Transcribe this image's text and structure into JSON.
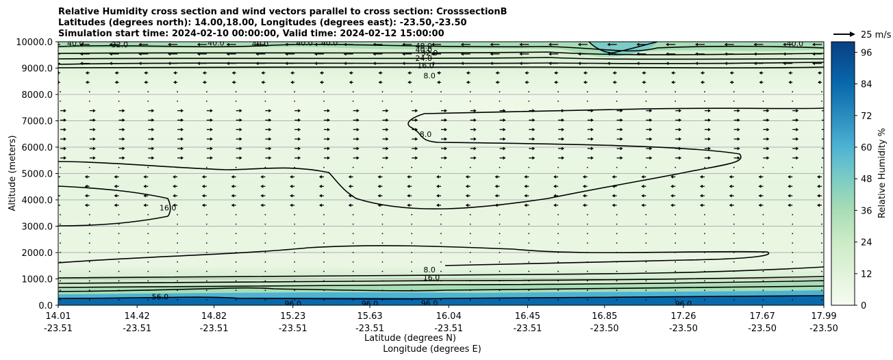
{
  "title_lines": [
    "Relative Humidity cross section and wind vectors parallel to cross section: CrosssectionB",
    "Latitudes (degrees north): 14.00,18.00, Longitudes (degrees east): -23.50,-23.50",
    "Simulation start time: 2024-02-10 00:00:00, Valid time: 2024-02-12 15:00:00"
  ],
  "quiver_key_label": "25 m/s",
  "chart_data": {
    "type": "contour",
    "xlabel": "Latitude (degrees N)",
    "xlabel2": "Longitude (degrees E)",
    "ylabel": "Altitude (meters)",
    "ylim": [
      0,
      10000
    ],
    "y_ticks": [
      0,
      1000,
      2000,
      3000,
      4000,
      5000,
      6000,
      7000,
      8000,
      9000,
      10000
    ],
    "y_tick_labels": [
      "0.0",
      "1000.0",
      "2000.0",
      "3000.0",
      "4000.0",
      "5000.0",
      "6000.0",
      "7000.0",
      "8000.0",
      "9000.0",
      "10000.0"
    ],
    "x_ticks": [
      {
        "lat": "14.01",
        "lon": "-23.51"
      },
      {
        "lat": "14.42",
        "lon": "-23.51"
      },
      {
        "lat": "14.82",
        "lon": "-23.51"
      },
      {
        "lat": "15.23",
        "lon": "-23.51"
      },
      {
        "lat": "15.63",
        "lon": "-23.51"
      },
      {
        "lat": "16.04",
        "lon": "-23.51"
      },
      {
        "lat": "16.45",
        "lon": "-23.51"
      },
      {
        "lat": "16.85",
        "lon": "-23.50"
      },
      {
        "lat": "17.26",
        "lon": "-23.50"
      },
      {
        "lat": "17.67",
        "lon": "-23.50"
      },
      {
        "lat": "17.99",
        "lon": "-23.50"
      }
    ],
    "grid": "horizontal",
    "colorbar": {
      "label": "Relative Humidity %",
      "ticks": [
        0,
        12,
        24,
        36,
        48,
        60,
        72,
        84,
        96
      ],
      "range": [
        0,
        100
      ],
      "colormap_stops": [
        "#f7fcf0",
        "#e0f3db",
        "#ccebc5",
        "#a8ddb5",
        "#7bccc4",
        "#4eb3d3",
        "#2b8cbe",
        "#0868ac",
        "#084081"
      ]
    },
    "contour_labels": [
      {
        "text": "40.0",
        "x": 14.1,
        "y": 9950
      },
      {
        "text": "32.0",
        "x": 14.33,
        "y": 9900
      },
      {
        "text": "40.0",
        "x": 14.83,
        "y": 9960
      },
      {
        "text": "40.0",
        "x": 15.06,
        "y": 9920
      },
      {
        "text": "40.0",
        "x": 15.29,
        "y": 9960
      },
      {
        "text": "40.0",
        "x": 15.42,
        "y": 9960
      },
      {
        "text": "48.0",
        "x": 15.91,
        "y": 9850
      },
      {
        "text": "40.0",
        "x": 15.91,
        "y": 9700
      },
      {
        "text": "32.0",
        "x": 15.94,
        "y": 9580
      },
      {
        "text": "24.0",
        "x": 15.91,
        "y": 9380
      },
      {
        "text": "16.0",
        "x": 15.92,
        "y": 9100
      },
      {
        "text": "8.0",
        "x": 15.94,
        "y": 8720
      },
      {
        "text": "8.0",
        "x": 15.92,
        "y": 6500
      },
      {
        "text": "16.0",
        "x": 14.58,
        "y": 3700
      },
      {
        "text": "8.0",
        "x": 15.94,
        "y": 1350
      },
      {
        "text": "16.0",
        "x": 15.95,
        "y": 1050
      },
      {
        "text": "96.0",
        "x": 15.94,
        "y": 80
      },
      {
        "text": "56.0",
        "x": 14.54,
        "y": 330
      },
      {
        "text": "96.0",
        "x": 15.23,
        "y": 60
      },
      {
        "text": "96.0",
        "x": 15.63,
        "y": 60
      },
      {
        "text": "96.0",
        "x": 17.26,
        "y": 60
      },
      {
        "text": "40.0",
        "x": 17.84,
        "y": 9940
      }
    ],
    "contour_levels": [
      8,
      16,
      24,
      32,
      40,
      48,
      56,
      96
    ]
  }
}
